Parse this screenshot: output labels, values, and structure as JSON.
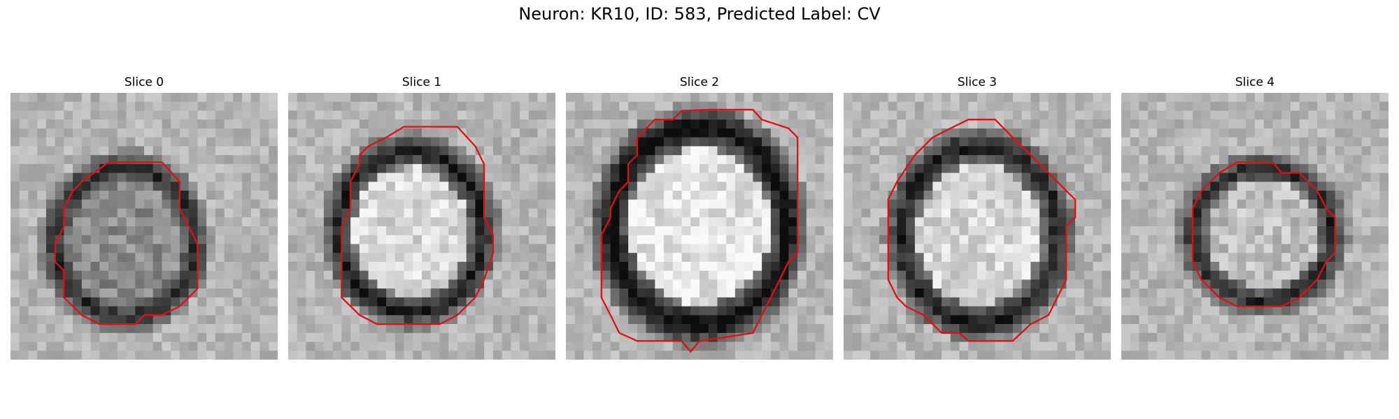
{
  "figure": {
    "title": "Neuron: KR10, ID: 583, Predicted Label: CV"
  },
  "slices": [
    {
      "title": "Slice 0"
    },
    {
      "title": "Slice 1"
    },
    {
      "title": "Slice 2"
    },
    {
      "title": "Slice 3"
    },
    {
      "title": "Slice 4"
    }
  ],
  "colors": {
    "contour": "#e01010",
    "background": "#ffffff",
    "colormap": "grayscale"
  }
}
